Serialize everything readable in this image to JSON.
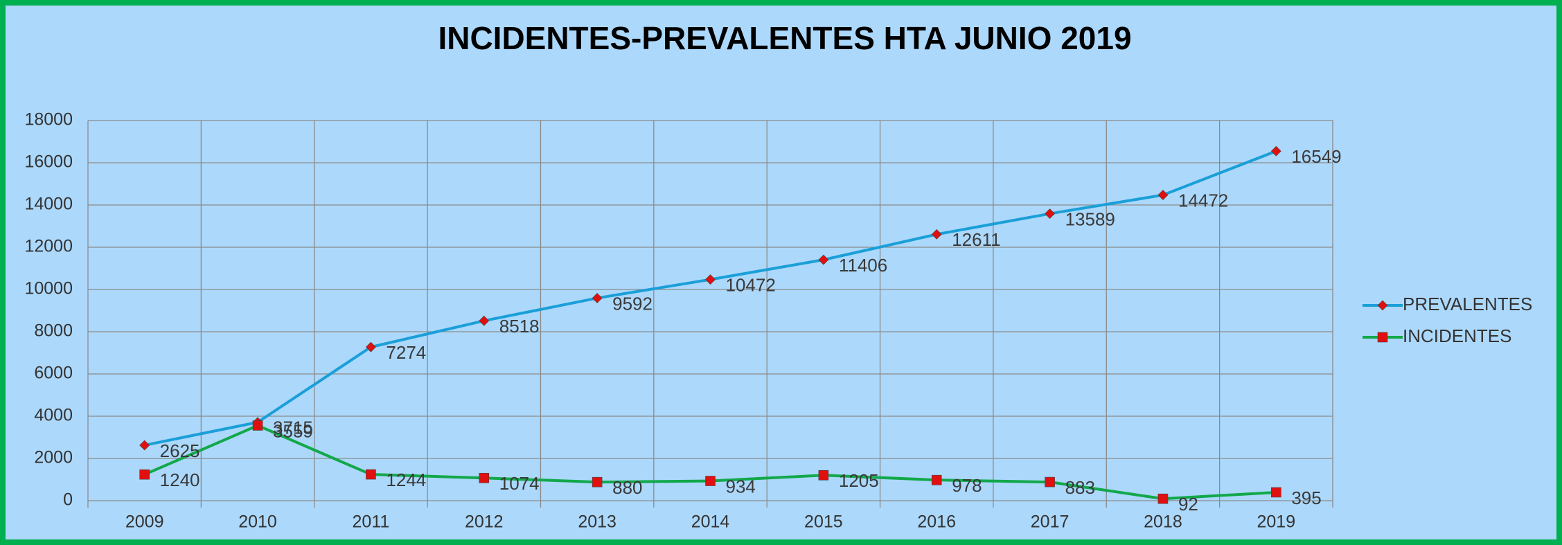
{
  "chart_data": {
    "type": "line",
    "title": "INCIDENTES-PREVALENTES HTA JUNIO 2019",
    "categories": [
      "2009",
      "2010",
      "2011",
      "2012",
      "2013",
      "2014",
      "2015",
      "2016",
      "2017",
      "2018",
      "2019"
    ],
    "series": [
      {
        "name": "PREVALENTES",
        "color": "#1a9fd8",
        "marker": "diamond",
        "values": [
          2625,
          3715,
          7274,
          8518,
          9592,
          10472,
          11406,
          12611,
          13589,
          14472,
          16549
        ]
      },
      {
        "name": "INCIDENTES",
        "color": "#12a84a",
        "marker": "square",
        "values": [
          1240,
          3559,
          1244,
          1074,
          880,
          934,
          1205,
          978,
          883,
          92,
          395
        ]
      }
    ],
    "marker_color": "#e01010",
    "ylim": [
      0,
      18000
    ],
    "yticks": [
      0,
      2000,
      4000,
      6000,
      8000,
      10000,
      12000,
      14000,
      16000,
      18000
    ],
    "grid": true,
    "legend": "right"
  }
}
